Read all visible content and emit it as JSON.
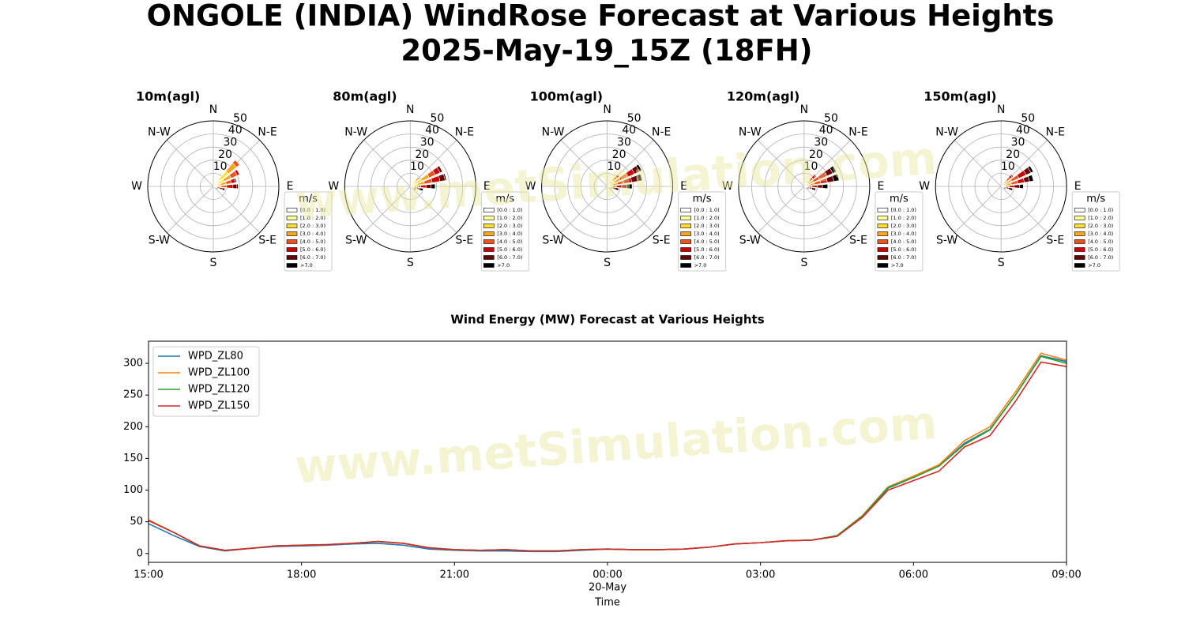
{
  "title": "ONGOLE (INDIA) WindRose Forecast at Various Heights",
  "subtitle": "2025-May-19_15Z (18FH)",
  "watermark": "www.metSimulation.com",
  "chart_data": [
    {
      "type": "windrose",
      "title": "10m(agl)",
      "direction_labels": [
        "N",
        "N-E",
        "E",
        "S-E",
        "S",
        "S-W",
        "W",
        "N-W"
      ],
      "rlim": [
        0,
        50
      ],
      "rticks": [
        10,
        20,
        30,
        40,
        50
      ],
      "legend_title": "m/s",
      "directions": [
        45,
        60,
        75,
        90,
        105,
        120
      ],
      "series": [
        {
          "name": "[0.0 : 1.0)",
          "color": "#ffffff",
          "values": [
            2,
            1,
            1,
            0,
            0,
            0
          ]
        },
        {
          "name": "[1.0 : 2.0)",
          "color": "#ffff99",
          "values": [
            5,
            3,
            2,
            1,
            0,
            0
          ]
        },
        {
          "name": "[2.0 : 3.0)",
          "color": "#ffdd33",
          "values": [
            8,
            5,
            3,
            2,
            1,
            0
          ]
        },
        {
          "name": "[3.0 : 4.0)",
          "color": "#f5a623",
          "values": [
            8,
            6,
            4,
            3,
            1,
            0
          ]
        },
        {
          "name": "[4.0 : 5.0)",
          "color": "#e8541c",
          "values": [
            3,
            5,
            4,
            4,
            1,
            0
          ]
        },
        {
          "name": "[5.0 : 6.0)",
          "color": "#cc0000",
          "values": [
            0,
            2,
            3,
            5,
            2,
            1
          ]
        },
        {
          "name": "[6.0 : 7.0)",
          "color": "#6b0000",
          "values": [
            0,
            0,
            1,
            3,
            2,
            1
          ]
        },
        {
          "name": ">7.0",
          "color": "#000000",
          "values": [
            0,
            0,
            0,
            1,
            2,
            2
          ]
        }
      ]
    },
    {
      "type": "windrose",
      "title": "80m(agl)",
      "direction_labels": [
        "N",
        "N-E",
        "E",
        "S-E",
        "S",
        "S-W",
        "W",
        "N-W"
      ],
      "rlim": [
        0,
        50
      ],
      "rticks": [
        10,
        20,
        30,
        40,
        50
      ],
      "legend_title": "m/s",
      "directions": [
        45,
        60,
        75,
        90,
        105,
        120
      ],
      "series": [
        {
          "name": "[0.0 : 1.0)",
          "color": "#ffffff",
          "values": [
            1,
            1,
            0,
            0,
            0,
            0
          ]
        },
        {
          "name": "[1.0 : 2.0)",
          "color": "#ffff99",
          "values": [
            2,
            3,
            2,
            1,
            0,
            0
          ]
        },
        {
          "name": "[2.0 : 3.0)",
          "color": "#ffdd33",
          "values": [
            3,
            6,
            4,
            2,
            1,
            0
          ]
        },
        {
          "name": "[3.0 : 4.0)",
          "color": "#f5a623",
          "values": [
            2,
            6,
            5,
            2,
            1,
            0
          ]
        },
        {
          "name": "[4.0 : 5.0)",
          "color": "#e8541c",
          "values": [
            1,
            5,
            6,
            3,
            1,
            1
          ]
        },
        {
          "name": "[5.0 : 6.0)",
          "color": "#cc0000",
          "values": [
            0,
            4,
            6,
            4,
            2,
            1
          ]
        },
        {
          "name": "[6.0 : 7.0)",
          "color": "#6b0000",
          "values": [
            0,
            2,
            4,
            4,
            2,
            1
          ]
        },
        {
          "name": ">7.0",
          "color": "#000000",
          "values": [
            0,
            0,
            1,
            3,
            3,
            2
          ]
        }
      ]
    },
    {
      "type": "windrose",
      "title": "100m(agl)",
      "direction_labels": [
        "N",
        "N-E",
        "E",
        "S-E",
        "S",
        "S-W",
        "W",
        "N-W"
      ],
      "rlim": [
        0,
        50
      ],
      "rticks": [
        10,
        20,
        30,
        40,
        50
      ],
      "legend_title": "m/s",
      "directions": [
        45,
        60,
        75,
        90,
        105,
        120
      ],
      "series": [
        {
          "name": "[0.0 : 1.0)",
          "color": "#ffffff",
          "values": [
            1,
            0,
            0,
            0,
            0,
            0
          ]
        },
        {
          "name": "[1.0 : 2.0)",
          "color": "#ffff99",
          "values": [
            2,
            2,
            1,
            1,
            0,
            0
          ]
        },
        {
          "name": "[2.0 : 3.0)",
          "color": "#ffdd33",
          "values": [
            3,
            4,
            3,
            1,
            1,
            0
          ]
        },
        {
          "name": "[3.0 : 4.0)",
          "color": "#f5a623",
          "values": [
            4,
            5,
            4,
            2,
            1,
            0
          ]
        },
        {
          "name": "[4.0 : 5.0)",
          "color": "#e8541c",
          "values": [
            2,
            6,
            5,
            3,
            1,
            0
          ]
        },
        {
          "name": "[5.0 : 6.0)",
          "color": "#cc0000",
          "values": [
            0,
            6,
            6,
            4,
            1,
            1
          ]
        },
        {
          "name": "[6.0 : 7.0)",
          "color": "#6b0000",
          "values": [
            0,
            4,
            5,
            4,
            2,
            1
          ]
        },
        {
          "name": ">7.0",
          "color": "#000000",
          "values": [
            0,
            2,
            3,
            4,
            3,
            2
          ]
        }
      ]
    },
    {
      "type": "windrose",
      "title": "120m(agl)",
      "direction_labels": [
        "N",
        "N-E",
        "E",
        "S-E",
        "S",
        "S-W",
        "W",
        "N-W"
      ],
      "rlim": [
        0,
        50
      ],
      "rticks": [
        10,
        20,
        30,
        40,
        50
      ],
      "legend_title": "m/s",
      "directions": [
        45,
        60,
        75,
        90,
        105,
        120
      ],
      "series": [
        {
          "name": "[0.0 : 1.0)",
          "color": "#ffffff",
          "values": [
            0,
            0,
            0,
            0,
            0,
            0
          ]
        },
        {
          "name": "[1.0 : 2.0)",
          "color": "#ffff99",
          "values": [
            1,
            1,
            1,
            0,
            0,
            0
          ]
        },
        {
          "name": "[2.0 : 3.0)",
          "color": "#ffdd33",
          "values": [
            2,
            3,
            3,
            1,
            0,
            0
          ]
        },
        {
          "name": "[3.0 : 4.0)",
          "color": "#f5a623",
          "values": [
            3,
            4,
            4,
            2,
            1,
            0
          ]
        },
        {
          "name": "[4.0 : 5.0)",
          "color": "#e8541c",
          "values": [
            3,
            5,
            5,
            3,
            1,
            0
          ]
        },
        {
          "name": "[5.0 : 6.0)",
          "color": "#cc0000",
          "values": [
            2,
            6,
            5,
            4,
            2,
            1
          ]
        },
        {
          "name": "[6.0 : 7.0)",
          "color": "#6b0000",
          "values": [
            1,
            5,
            5,
            4,
            2,
            1
          ]
        },
        {
          "name": ">7.0",
          "color": "#000000",
          "values": [
            0,
            3,
            4,
            4,
            3,
            2
          ]
        }
      ]
    },
    {
      "type": "windrose",
      "title": "150m(agl)",
      "direction_labels": [
        "N",
        "N-E",
        "E",
        "S-E",
        "S",
        "S-W",
        "W",
        "N-W"
      ],
      "rlim": [
        0,
        50
      ],
      "rticks": [
        10,
        20,
        30,
        40,
        50
      ],
      "legend_title": "m/s",
      "directions": [
        45,
        60,
        75,
        90,
        105,
        120
      ],
      "series": [
        {
          "name": "[0.0 : 1.0)",
          "color": "#ffffff",
          "values": [
            0,
            0,
            0,
            0,
            0,
            0
          ]
        },
        {
          "name": "[1.0 : 2.0)",
          "color": "#ffff99",
          "values": [
            1,
            1,
            1,
            0,
            0,
            0
          ]
        },
        {
          "name": "[2.0 : 3.0)",
          "color": "#ffdd33",
          "values": [
            2,
            3,
            3,
            1,
            0,
            0
          ]
        },
        {
          "name": "[3.0 : 4.0)",
          "color": "#f5a623",
          "values": [
            3,
            5,
            4,
            2,
            1,
            0
          ]
        },
        {
          "name": "[4.0 : 5.0)",
          "color": "#e8541c",
          "values": [
            3,
            6,
            5,
            3,
            1,
            0
          ]
        },
        {
          "name": "[5.0 : 6.0)",
          "color": "#cc0000",
          "values": [
            2,
            6,
            5,
            4,
            2,
            1
          ]
        },
        {
          "name": "[6.0 : 7.0)",
          "color": "#6b0000",
          "values": [
            1,
            4,
            4,
            4,
            2,
            1
          ]
        },
        {
          "name": ">7.0",
          "color": "#000000",
          "values": [
            0,
            2,
            3,
            3,
            3,
            2
          ]
        }
      ]
    },
    {
      "type": "line",
      "title": "Wind Energy (MW) Forecast at Various Heights",
      "x_label": "Time",
      "x_date_label": "20-May",
      "x": [
        "05-19 15:00",
        "05-19 15:30",
        "05-19 16:00",
        "05-19 16:30",
        "05-19 17:00",
        "05-19 17:30",
        "05-19 18:00",
        "05-19 18:30",
        "05-19 19:00",
        "05-19 19:30",
        "05-19 20:00",
        "05-19 20:30",
        "05-19 21:00",
        "05-19 21:30",
        "05-19 22:00",
        "05-19 22:30",
        "05-19 23:00",
        "05-19 23:30",
        "05-20 00:00",
        "05-20 00:30",
        "05-20 01:00",
        "05-20 01:30",
        "05-20 02:00",
        "05-20 02:30",
        "05-20 03:00",
        "05-20 03:30",
        "05-20 04:00",
        "05-20 04:30",
        "05-20 05:00",
        "05-20 05:30",
        "05-20 06:00",
        "05-20 06:30",
        "05-20 07:00",
        "05-20 07:30",
        "05-20 08:00",
        "05-20 08:30",
        "05-20 09:00"
      ],
      "xlim": [
        "05-19 15:00",
        "05-20 09:00"
      ],
      "xticks": [
        {
          "value": "05-19 15:00",
          "label": "15:00"
        },
        {
          "value": "05-19 18:00",
          "label": "18:00"
        },
        {
          "value": "05-19 21:00",
          "label": "21:00"
        },
        {
          "value": "05-20 00:00",
          "label": "00:00"
        },
        {
          "value": "05-20 03:00",
          "label": "03:00"
        },
        {
          "value": "05-20 06:00",
          "label": "06:00"
        },
        {
          "value": "05-20 09:00",
          "label": "09:00"
        }
      ],
      "ylim": [
        -14,
        335
      ],
      "yticks": [
        0,
        50,
        100,
        150,
        200,
        250,
        300
      ],
      "legend": "upper left",
      "series": [
        {
          "name": "WPD_ZL80",
          "color": "#1f77b4",
          "values": [
            47,
            28,
            11,
            4,
            8,
            11,
            12,
            13,
            15,
            16,
            13,
            7,
            5,
            4,
            4,
            3,
            3,
            5,
            7,
            6,
            6,
            7,
            10,
            15,
            17,
            20,
            21,
            28,
            58,
            103,
            120,
            138,
            174,
            196,
            250,
            312,
            303
          ]
        },
        {
          "name": "WPD_ZL100",
          "color": "#ff7f0e",
          "values": [
            53,
            33,
            12,
            5,
            8,
            12,
            13,
            14,
            16,
            19,
            16,
            9,
            6,
            5,
            6,
            4,
            4,
            6,
            7,
            6,
            6,
            7,
            10,
            15,
            17,
            20,
            21,
            28,
            60,
            105,
            122,
            140,
            178,
            200,
            255,
            316,
            305
          ]
        },
        {
          "name": "WPD_ZL120",
          "color": "#2ca02c",
          "values": [
            52,
            33,
            12,
            5,
            8,
            12,
            13,
            14,
            16,
            19,
            16,
            9,
            6,
            5,
            6,
            4,
            4,
            6,
            7,
            6,
            6,
            7,
            10,
            15,
            17,
            20,
            21,
            28,
            59,
            104,
            120,
            138,
            172,
            195,
            250,
            311,
            300
          ]
        },
        {
          "name": "WPD_ZL150",
          "color": "#d62728",
          "values": [
            52,
            33,
            12,
            5,
            8,
            12,
            13,
            14,
            16,
            19,
            16,
            9,
            6,
            5,
            6,
            4,
            4,
            6,
            7,
            6,
            6,
            7,
            10,
            15,
            17,
            20,
            21,
            27,
            57,
            100,
            115,
            130,
            168,
            186,
            240,
            302,
            295
          ]
        }
      ]
    }
  ]
}
